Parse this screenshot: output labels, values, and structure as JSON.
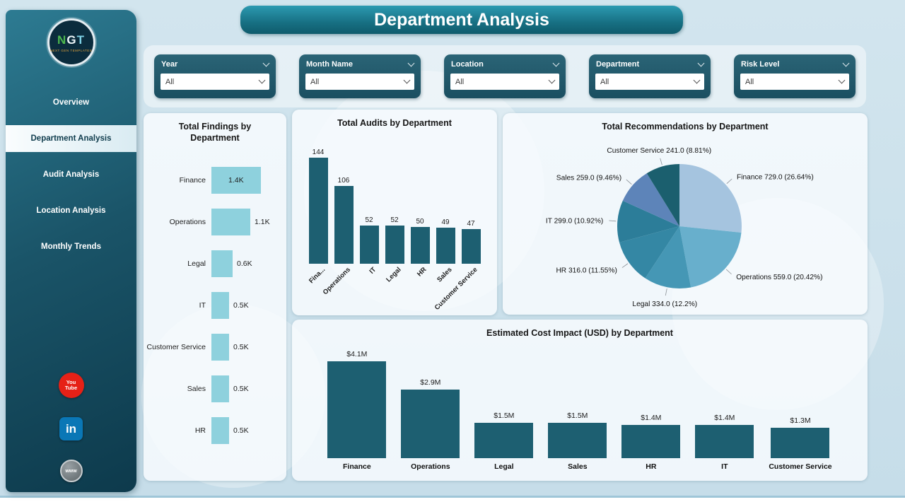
{
  "header": {
    "title": "Department Analysis"
  },
  "sidebar": {
    "logo_text": "NGT",
    "logo_subtext": "NEXT GEN TEMPLATES",
    "items": [
      {
        "label": "Overview"
      },
      {
        "label": "Department Analysis"
      },
      {
        "label": "Audit Analysis"
      },
      {
        "label": "Location Analysis"
      },
      {
        "label": "Monthly Trends"
      }
    ],
    "active_index": 1,
    "social": [
      {
        "name": "youtube",
        "text_top": "You",
        "text_bottom": "Tube"
      },
      {
        "name": "linkedin",
        "text": "in"
      },
      {
        "name": "website",
        "text": "www"
      }
    ]
  },
  "filters": [
    {
      "label": "Year",
      "value": "All"
    },
    {
      "label": "Month Name",
      "value": "All"
    },
    {
      "label": "Location",
      "value": "All"
    },
    {
      "label": "Department",
      "value": "All"
    },
    {
      "label": "Risk Level",
      "value": "All"
    }
  ],
  "chart_data": [
    {
      "id": "findings",
      "type": "bar",
      "orientation": "horizontal",
      "title": "Total Findings by Department",
      "categories": [
        "Finance",
        "Operations",
        "Legal",
        "IT",
        "Customer Service",
        "Sales",
        "HR"
      ],
      "values": [
        1.4,
        1.1,
        0.6,
        0.5,
        0.5,
        0.5,
        0.5
      ],
      "value_labels": [
        "1.4K",
        "1.1K",
        "0.6K",
        "0.5K",
        "0.5K",
        "0.5K",
        "0.5K"
      ],
      "unit": "K",
      "bar_color": "#8ed1dd"
    },
    {
      "id": "audits",
      "type": "bar",
      "orientation": "vertical",
      "title": "Total Audits by Department",
      "categories": [
        "Fina...",
        "Operations",
        "IT",
        "Legal",
        "HR",
        "Sales",
        "Customer Service"
      ],
      "values": [
        144,
        106,
        52,
        52,
        50,
        49,
        47
      ],
      "bar_color": "#1d5f71"
    },
    {
      "id": "recommendations",
      "type": "pie",
      "title": "Total Recommendations by Department",
      "slices": [
        {
          "name": "Finance",
          "value": 729,
          "display": "729.0",
          "pct": "26.64%"
        },
        {
          "name": "Operations",
          "value": 559,
          "display": "559.0",
          "pct": "20.42%"
        },
        {
          "name": "Legal",
          "value": 334,
          "display": "334.0",
          "pct": "12.2%"
        },
        {
          "name": "HR",
          "value": 316,
          "display": "316.0",
          "pct": "11.55%"
        },
        {
          "name": "IT",
          "value": 299,
          "display": "299.0",
          "pct": "10.92%"
        },
        {
          "name": "Sales",
          "value": 259,
          "display": "259.0",
          "pct": "9.46%"
        },
        {
          "name": "Customer Service",
          "value": 241,
          "display": "241.0",
          "pct": "8.81%"
        }
      ]
    },
    {
      "id": "cost",
      "type": "bar",
      "orientation": "vertical",
      "title": "Estimated Cost Impact (USD) by Department",
      "categories": [
        "Finance",
        "Operations",
        "Legal",
        "Sales",
        "HR",
        "IT",
        "Customer Service"
      ],
      "values": [
        4.1,
        2.9,
        1.5,
        1.5,
        1.4,
        1.4,
        1.3
      ],
      "value_labels": [
        "$4.1M",
        "$2.9M",
        "$1.5M",
        "$1.5M",
        "$1.4M",
        "$1.4M",
        "$1.3M"
      ],
      "unit": "M USD",
      "bar_color": "#1d5f71"
    }
  ],
  "colors": {
    "accent_teal": "#1d5f71",
    "light_bar": "#8ed1dd",
    "background": "#cce0ea",
    "pie": [
      "#a5c4df",
      "#68afcc",
      "#4597b5",
      "#3487a4",
      "#2c7d99",
      "#5d84b9",
      "#1b5f6e"
    ]
  }
}
